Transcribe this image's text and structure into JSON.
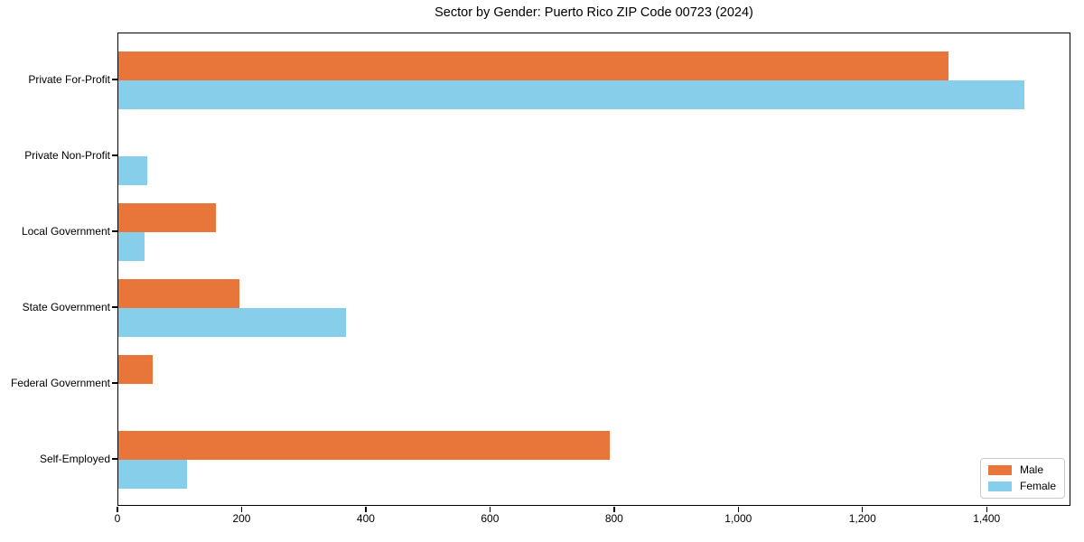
{
  "title": "Sector by Gender: Puerto Rico ZIP Code 00723 (2024)",
  "chart_data": {
    "type": "bar",
    "orientation": "horizontal",
    "title": "Sector by Gender: Puerto Rico ZIP Code 00723 (2024)",
    "categories": [
      "Private For-Profit",
      "Private Non-Profit",
      "Local Government",
      "State Government",
      "Federal Government",
      "Self-Employed"
    ],
    "series": [
      {
        "name": "Male",
        "color": "#E8763B",
        "values": [
          1340,
          0,
          158,
          196,
          55,
          793
        ]
      },
      {
        "name": "Female",
        "color": "#87CEEB",
        "values": [
          1462,
          47,
          43,
          367,
          0,
          111
        ]
      }
    ],
    "xlabel": "",
    "ylabel": "",
    "xlim": [
      0,
      1535
    ],
    "x_ticks": [
      0,
      200,
      400,
      600,
      800,
      1000,
      1200,
      1400
    ],
    "x_tick_labels": [
      "0",
      "200",
      "400",
      "600",
      "800",
      "1,000",
      "1,200",
      "1,400"
    ],
    "grid": false,
    "legend_position": "lower right"
  },
  "legend": {
    "items": [
      {
        "label": "Male",
        "color": "#E8763B"
      },
      {
        "label": "Female",
        "color": "#87CEEB"
      }
    ]
  }
}
